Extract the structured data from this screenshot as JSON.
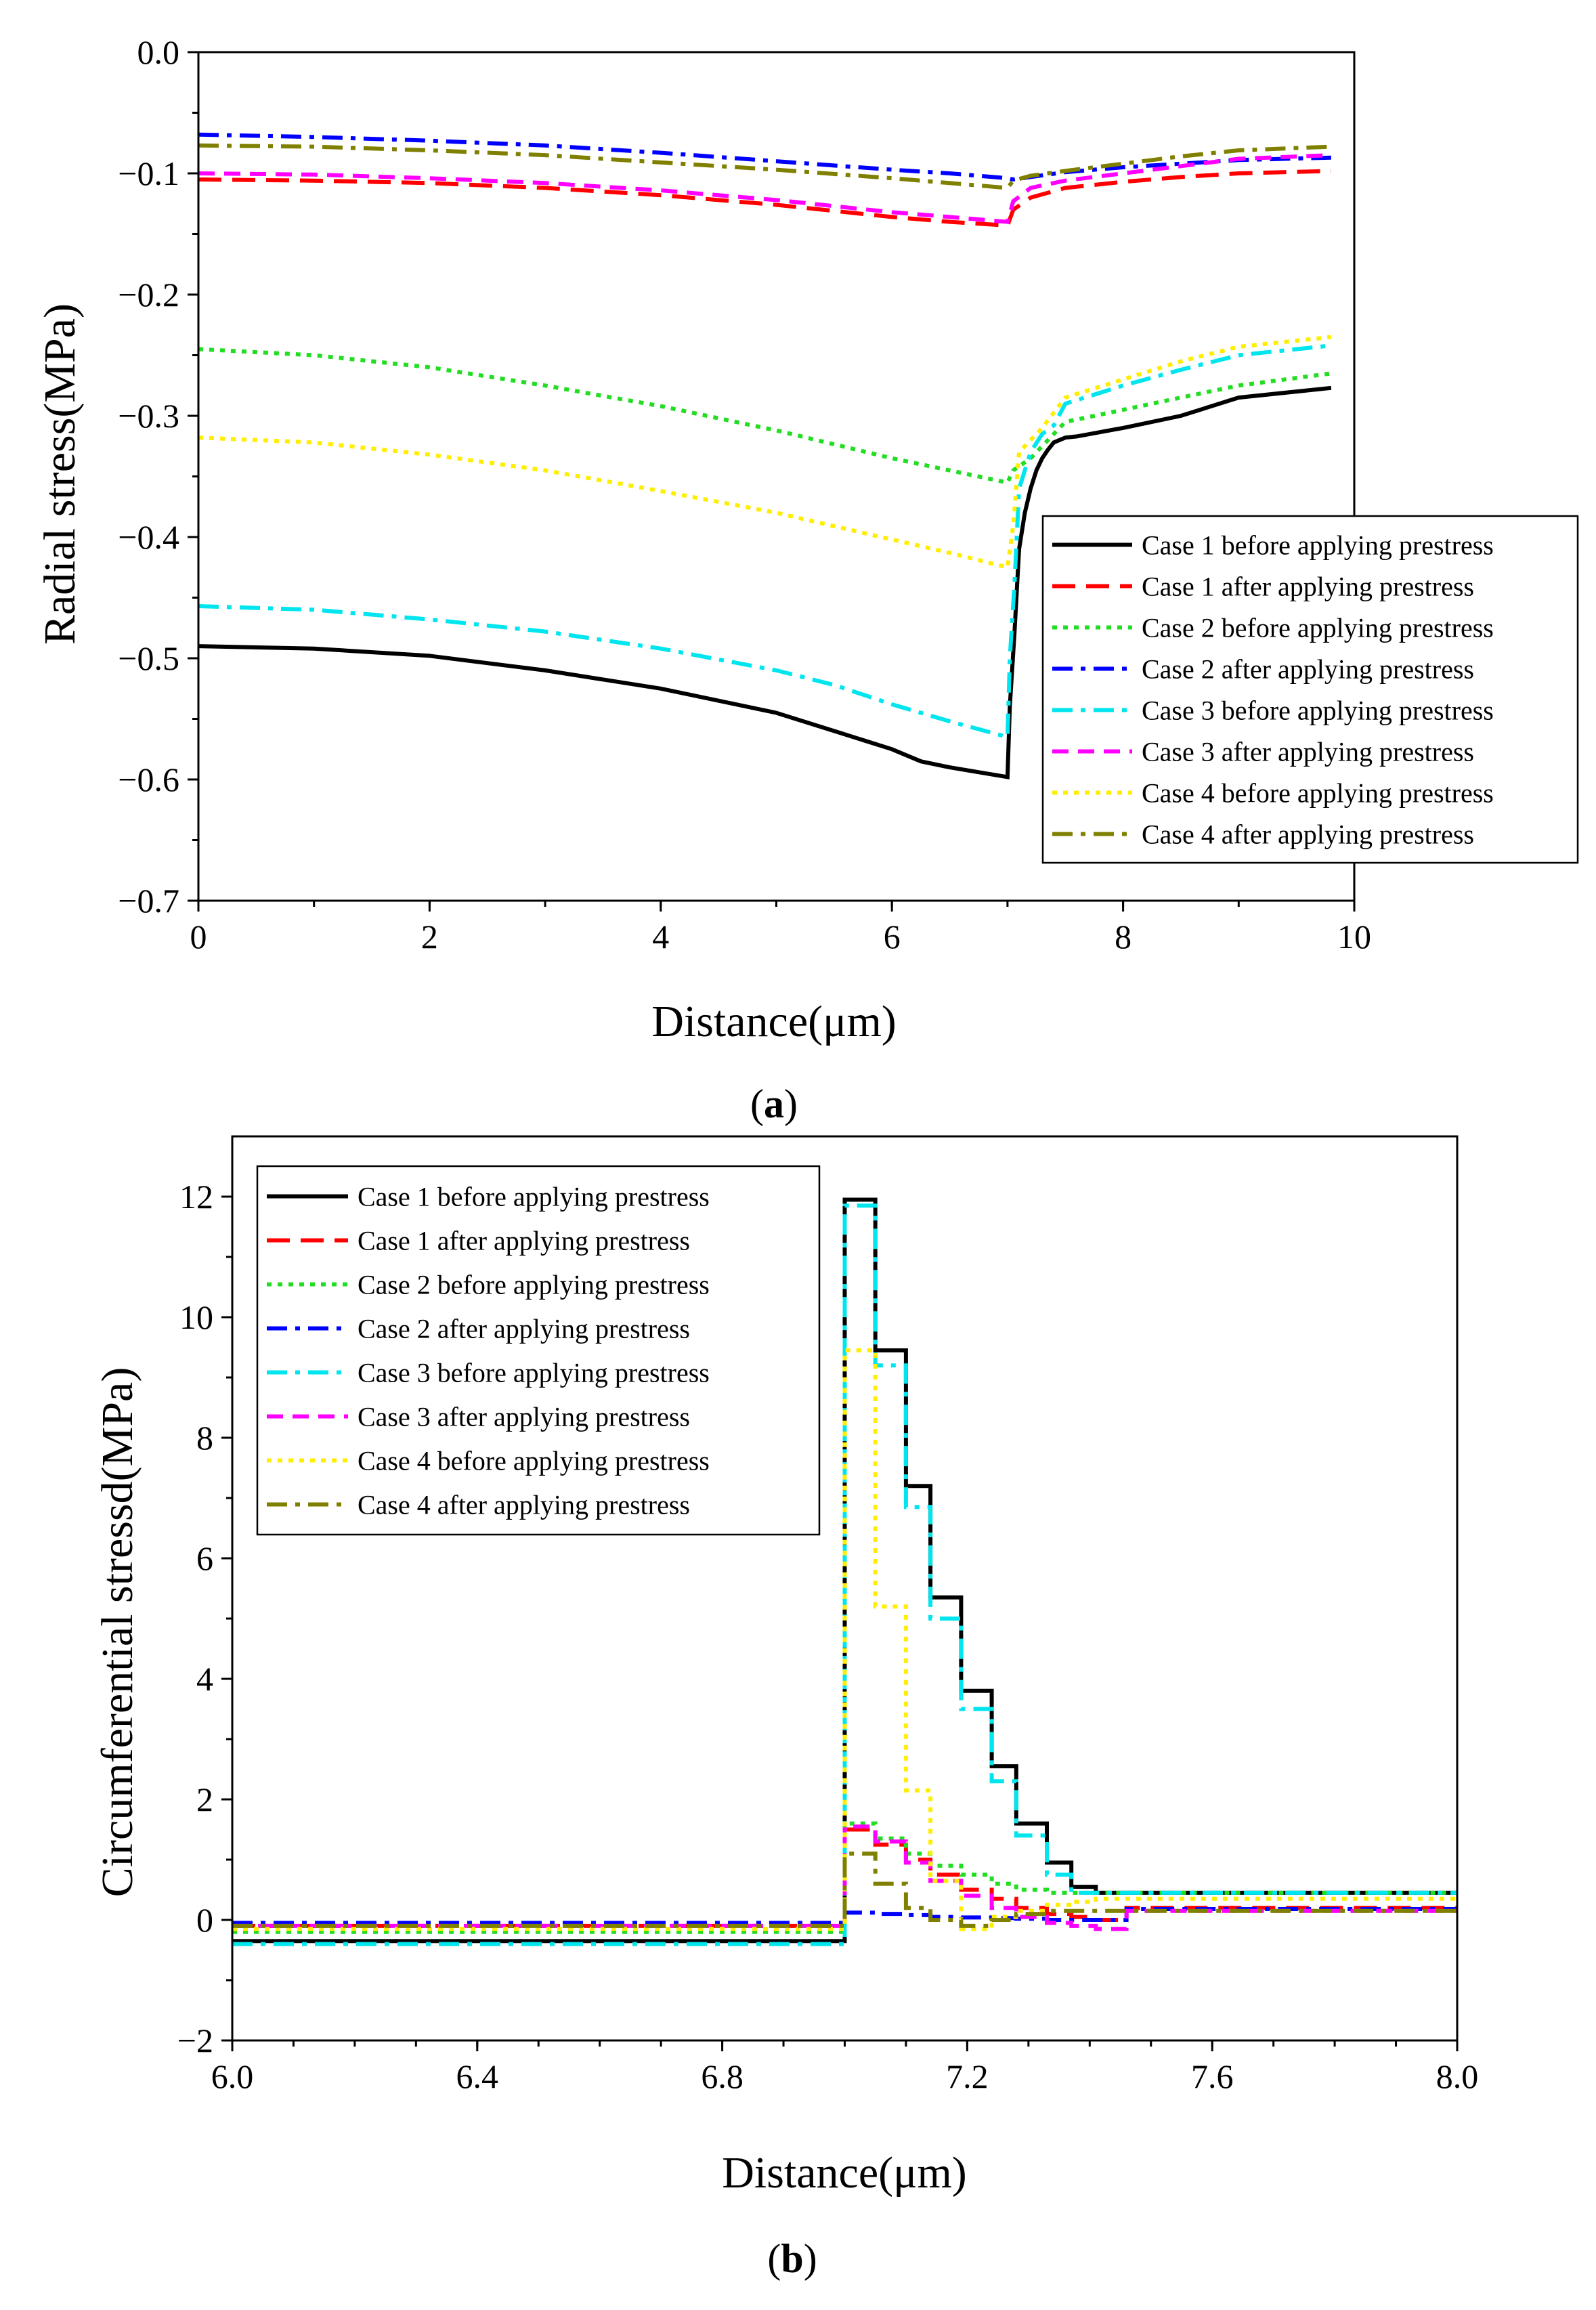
{
  "chart_data": [
    {
      "type": "line",
      "caption": "(a)",
      "caption_letter": "a",
      "xlabel": "Distance(μm)",
      "ylabel": "Radial stress(MPa)",
      "xlim": [
        0,
        10
      ],
      "ylim": [
        -0.7,
        0.0
      ],
      "xticks": [
        0,
        2,
        4,
        6,
        8,
        10
      ],
      "xtick_labels": [
        "0",
        "2",
        "4",
        "6",
        "8",
        "10"
      ],
      "yticks": [
        0.0,
        -0.1,
        -0.2,
        -0.3,
        -0.4,
        -0.5,
        -0.6,
        -0.7
      ],
      "ytick_labels": [
        "0.0",
        "−0.1",
        "−0.2",
        "−0.3",
        "−0.4",
        "−0.5",
        "−0.6",
        "−0.7"
      ],
      "legend_position": "right",
      "series": [
        {
          "name": "Case 1 before applying prestress",
          "color": "#000000",
          "dash": "solid",
          "x": [
            0,
            1,
            2,
            3,
            4,
            5,
            5.5,
            6,
            6.25,
            6.5,
            7.0,
            7.02,
            7.06,
            7.1,
            7.15,
            7.2,
            7.25,
            7.3,
            7.35,
            7.4,
            7.5,
            7.6,
            8.0,
            8.5,
            9.0,
            9.8
          ],
          "y": [
            -0.49,
            -0.492,
            -0.498,
            -0.51,
            -0.525,
            -0.545,
            -0.56,
            -0.575,
            -0.585,
            -0.59,
            -0.598,
            -0.54,
            -0.48,
            -0.41,
            -0.38,
            -0.36,
            -0.345,
            -0.335,
            -0.328,
            -0.322,
            -0.318,
            -0.317,
            -0.31,
            -0.3,
            -0.285,
            -0.277
          ]
        },
        {
          "name": "Case 1 after applying prestress",
          "color": "#ff0000",
          "dash": "longdash",
          "x": [
            0,
            1,
            2,
            3,
            4,
            5,
            6,
            6.5,
            7.0,
            7.05,
            7.2,
            7.5,
            8.0,
            8.5,
            9.0,
            9.8
          ],
          "y": [
            -0.105,
            -0.106,
            -0.108,
            -0.112,
            -0.118,
            -0.126,
            -0.136,
            -0.14,
            -0.143,
            -0.13,
            -0.12,
            -0.112,
            -0.107,
            -0.103,
            -0.1,
            -0.098
          ]
        },
        {
          "name": "Case 2 before applying prestress",
          "color": "#22dd22",
          "dash": "dot",
          "x": [
            0,
            1,
            2,
            3,
            4,
            5,
            6,
            6.5,
            7.0,
            7.05,
            7.2,
            7.3,
            7.5,
            8.0,
            8.5,
            9.0,
            9.8
          ],
          "y": [
            -0.245,
            -0.25,
            -0.26,
            -0.275,
            -0.292,
            -0.312,
            -0.335,
            -0.345,
            -0.355,
            -0.345,
            -0.335,
            -0.325,
            -0.305,
            -0.295,
            -0.285,
            -0.275,
            -0.265
          ]
        },
        {
          "name": "Case 2 after applying prestress",
          "color": "#0000ff",
          "dash": "dashdot",
          "x": [
            0,
            1,
            2,
            3,
            4,
            5,
            6,
            6.5,
            7.0,
            7.05,
            7.2,
            7.5,
            8.0,
            8.5,
            9.0,
            9.8
          ],
          "y": [
            -0.068,
            -0.07,
            -0.073,
            -0.077,
            -0.083,
            -0.09,
            -0.097,
            -0.1,
            -0.104,
            -0.105,
            -0.103,
            -0.099,
            -0.095,
            -0.092,
            -0.089,
            -0.087
          ]
        },
        {
          "name": "Case 3 before applying prestress",
          "color": "#00e5ee",
          "dash": "dashdot",
          "x": [
            0,
            1,
            2,
            3,
            4,
            5,
            5.5,
            6,
            6.5,
            7.0,
            7.02,
            7.06,
            7.1,
            7.2,
            7.3,
            7.4,
            7.5,
            8.0,
            8.5,
            9.0,
            9.8
          ],
          "y": [
            -0.457,
            -0.46,
            -0.468,
            -0.478,
            -0.492,
            -0.51,
            -0.522,
            -0.538,
            -0.552,
            -0.565,
            -0.5,
            -0.44,
            -0.36,
            -0.33,
            -0.315,
            -0.308,
            -0.29,
            -0.275,
            -0.262,
            -0.25,
            -0.242
          ]
        },
        {
          "name": "Case 3 after applying prestress",
          "color": "#ff00ff",
          "dash": "dash",
          "x": [
            0,
            1,
            2,
            3,
            4,
            5,
            6,
            6.5,
            7.0,
            7.05,
            7.2,
            7.5,
            8.0,
            8.5,
            9.0,
            9.8
          ],
          "y": [
            -0.1,
            -0.101,
            -0.104,
            -0.108,
            -0.114,
            -0.122,
            -0.132,
            -0.136,
            -0.14,
            -0.123,
            -0.112,
            -0.106,
            -0.1,
            -0.094,
            -0.088,
            -0.085
          ]
        },
        {
          "name": "Case 4 before applying prestress",
          "color": "#ffee00",
          "dash": "dot",
          "x": [
            0,
            1,
            2,
            3,
            4,
            5,
            6,
            6.5,
            7.0,
            7.05,
            7.1,
            7.2,
            7.3,
            7.5,
            8.0,
            8.5,
            9.0,
            9.8
          ],
          "y": [
            -0.318,
            -0.322,
            -0.332,
            -0.345,
            -0.362,
            -0.38,
            -0.402,
            -0.413,
            -0.425,
            -0.39,
            -0.33,
            -0.32,
            -0.31,
            -0.285,
            -0.27,
            -0.255,
            -0.243,
            -0.235
          ]
        },
        {
          "name": "Case 4 after applying prestress",
          "color": "#808000",
          "dash": "dashdot",
          "x": [
            0,
            1,
            2,
            3,
            4,
            5,
            6,
            6.5,
            7.0,
            7.05,
            7.2,
            7.5,
            8.0,
            8.5,
            9.0,
            9.8
          ],
          "y": [
            -0.077,
            -0.078,
            -0.081,
            -0.085,
            -0.091,
            -0.097,
            -0.104,
            -0.108,
            -0.112,
            -0.106,
            -0.102,
            -0.098,
            -0.092,
            -0.086,
            -0.081,
            -0.078
          ]
        }
      ]
    },
    {
      "type": "line",
      "caption": "(b)",
      "caption_letter": "b",
      "xlabel": "Distance(μm)",
      "ylabel": "Circumferential stressd(MPa)",
      "xlim": [
        6.0,
        8.0
      ],
      "ylim": [
        -2,
        13
      ],
      "xticks": [
        6.0,
        6.4,
        6.8,
        7.2,
        7.6,
        8.0
      ],
      "xtick_labels": [
        "6.0",
        "6.4",
        "6.8",
        "7.2",
        "7.6",
        "8.0"
      ],
      "xminor_step": 0.1,
      "yticks": [
        -2,
        0,
        2,
        4,
        6,
        8,
        10,
        12
      ],
      "ytick_labels": [
        "−2",
        "0",
        "2",
        "4",
        "6",
        "8",
        "10",
        "12"
      ],
      "legend_position": "top-left",
      "series": [
        {
          "name": "Case 1 before applying prestress",
          "color": "#000000",
          "dash": "solid",
          "step": true,
          "x": [
            6.0,
            7.0,
            7.0,
            7.05,
            7.1,
            7.14,
            7.19,
            7.24,
            7.28,
            7.33,
            7.37,
            7.41,
            7.46,
            8.0
          ],
          "y": [
            -0.35,
            -0.35,
            11.95,
            9.45,
            7.2,
            5.35,
            3.8,
            2.55,
            1.6,
            0.95,
            0.55,
            0.45,
            0.45,
            0.45
          ]
        },
        {
          "name": "Case 1 after applying prestress",
          "color": "#ff0000",
          "dash": "longdash",
          "step": true,
          "x": [
            6.0,
            7.0,
            7.0,
            7.05,
            7.1,
            7.14,
            7.19,
            7.24,
            7.28,
            7.33,
            7.37,
            7.41,
            7.46,
            8.0
          ],
          "y": [
            -0.1,
            -0.1,
            1.5,
            1.25,
            1.0,
            0.75,
            0.5,
            0.35,
            0.2,
            0.1,
            0.05,
            0.0,
            0.2,
            0.2
          ]
        },
        {
          "name": "Case 2 before applying prestress",
          "color": "#22dd22",
          "dash": "dot",
          "step": true,
          "x": [
            6.0,
            7.0,
            7.0,
            7.05,
            7.1,
            7.14,
            7.19,
            7.24,
            7.28,
            7.33,
            7.37,
            7.41,
            7.46,
            8.0
          ],
          "y": [
            -0.2,
            -0.2,
            1.6,
            1.35,
            1.1,
            0.9,
            0.75,
            0.6,
            0.5,
            0.45,
            0.45,
            0.45,
            0.45,
            0.45
          ]
        },
        {
          "name": "Case 2 after applying prestress",
          "color": "#0000ff",
          "dash": "dashdot",
          "step": true,
          "x": [
            6.0,
            7.0,
            7.0,
            7.05,
            7.1,
            7.14,
            7.19,
            7.24,
            7.28,
            7.33,
            7.37,
            7.41,
            7.46,
            8.0
          ],
          "y": [
            -0.05,
            -0.05,
            0.12,
            0.1,
            0.08,
            0.05,
            0.04,
            0.03,
            0.02,
            0.0,
            0.0,
            0.0,
            0.18,
            0.18
          ]
        },
        {
          "name": "Case 3 before applying prestress",
          "color": "#00e5ee",
          "dash": "dashdot",
          "step": true,
          "x": [
            6.0,
            7.0,
            7.0,
            7.05,
            7.1,
            7.14,
            7.19,
            7.24,
            7.28,
            7.33,
            7.37,
            7.41,
            7.46,
            8.0
          ],
          "y": [
            -0.4,
            -0.4,
            11.85,
            9.2,
            6.85,
            5.0,
            3.5,
            2.3,
            1.4,
            0.75,
            0.45,
            0.45,
            0.45,
            0.45
          ]
        },
        {
          "name": "Case 3 after applying prestress",
          "color": "#ff00ff",
          "dash": "dash",
          "step": true,
          "x": [
            6.0,
            7.0,
            7.0,
            7.05,
            7.1,
            7.14,
            7.19,
            7.24,
            7.28,
            7.33,
            7.37,
            7.41,
            7.46,
            8.0
          ],
          "y": [
            -0.1,
            -0.1,
            1.55,
            1.3,
            0.95,
            0.65,
            0.4,
            0.2,
            0.05,
            -0.05,
            -0.1,
            -0.15,
            0.15,
            0.15
          ]
        },
        {
          "name": "Case 4 before applying prestress",
          "color": "#ffee00",
          "dash": "dot",
          "step": true,
          "x": [
            6.0,
            7.0,
            7.0,
            7.05,
            7.1,
            7.14,
            7.19,
            7.24,
            7.28,
            7.33,
            7.37,
            7.41,
            7.46,
            8.0
          ],
          "y": [
            -0.15,
            -0.15,
            9.45,
            5.2,
            2.15,
            0.65,
            -0.15,
            0.05,
            0.15,
            0.25,
            0.3,
            0.35,
            0.35,
            0.35
          ]
        },
        {
          "name": "Case 4 after applying prestress",
          "color": "#808000",
          "dash": "dashdot",
          "step": true,
          "x": [
            6.0,
            7.0,
            7.0,
            7.05,
            7.1,
            7.14,
            7.19,
            7.24,
            7.28,
            7.33,
            7.37,
            7.41,
            7.46,
            8.0
          ],
          "y": [
            -0.1,
            -0.1,
            1.1,
            0.6,
            0.2,
            0.0,
            -0.1,
            0.0,
            0.1,
            0.15,
            0.15,
            0.15,
            0.15,
            0.15
          ]
        }
      ]
    }
  ]
}
